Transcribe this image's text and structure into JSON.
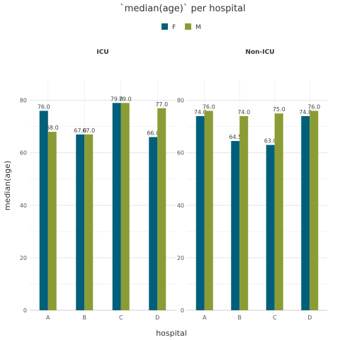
{
  "chart_data": {
    "type": "bar",
    "title": "`median(age)` per hospital",
    "xlabel": "hospital",
    "ylabel": "median(age)",
    "ylim": [
      0,
      88
    ],
    "yticks": [
      0,
      20,
      40,
      60,
      80
    ],
    "grid": true,
    "legend_position": "top",
    "legend": [
      {
        "name": "F",
        "color": "#005f7a"
      },
      {
        "name": "M",
        "color": "#8c9c34"
      }
    ],
    "categories": [
      "A",
      "B",
      "C",
      "D"
    ],
    "panels": [
      {
        "title": "ICU",
        "series": [
          {
            "name": "F",
            "values": [
              76.0,
              67.0,
              79.0,
              66.0
            ],
            "labels": [
              "76.0",
              "67.0",
              "79.0",
              "66.0"
            ]
          },
          {
            "name": "M",
            "values": [
              68.0,
              67.0,
              79.0,
              77.0
            ],
            "labels": [
              "68.0",
              "67.0",
              "79.0",
              "77.0"
            ]
          }
        ]
      },
      {
        "title": "Non-ICU",
        "series": [
          {
            "name": "F",
            "values": [
              74.0,
              64.5,
              63.0,
              74.0
            ],
            "labels": [
              "74.0",
              "64.5",
              "63.0",
              "74.0"
            ]
          },
          {
            "name": "M",
            "values": [
              76.0,
              74.0,
              75.0,
              76.0
            ],
            "labels": [
              "76.0",
              "74.0",
              "75.0",
              "76.0"
            ]
          }
        ]
      }
    ]
  }
}
